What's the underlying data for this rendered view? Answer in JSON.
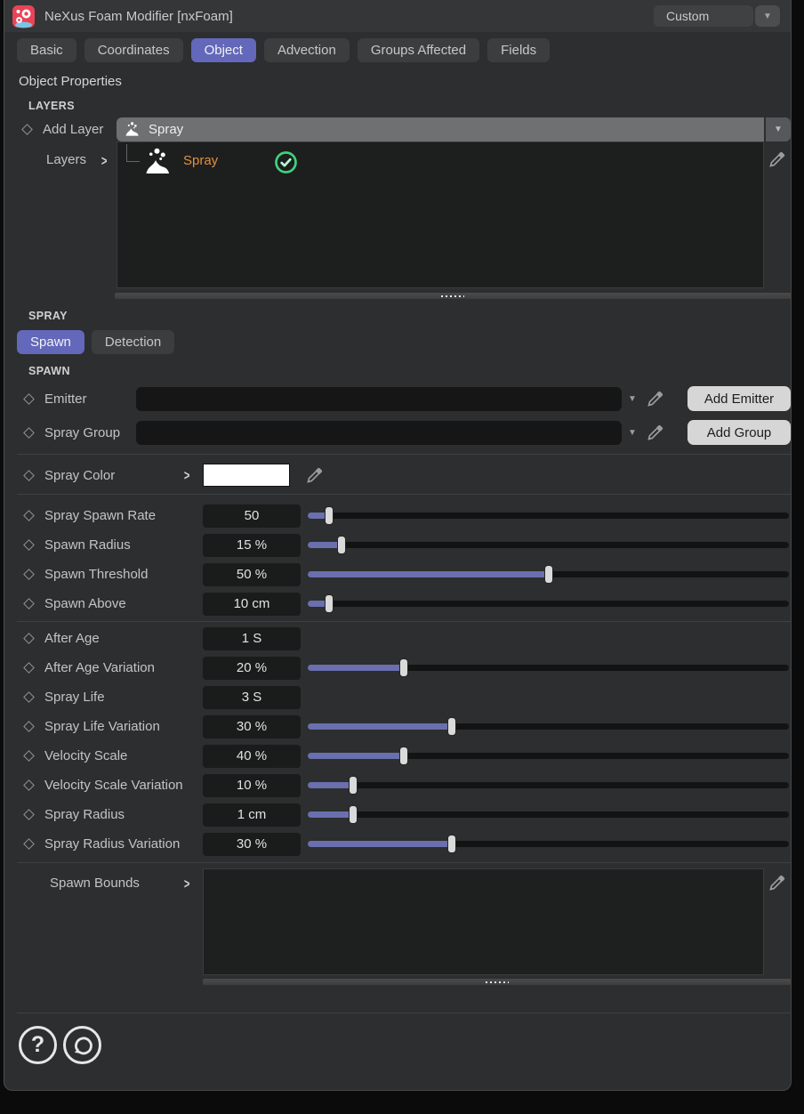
{
  "header": {
    "app_title": "NeXus Foam Modifier [nxFoam]",
    "preset_value": "Custom",
    "dropdown_glyph": "▼"
  },
  "tabs": {
    "basic": "Basic",
    "coordinates": "Coordinates",
    "object": "Object",
    "advection": "Advection",
    "groups_affected": "Groups Affected",
    "fields": "Fields"
  },
  "sections": {
    "object_properties_title": "Object Properties",
    "layers_heading": "LAYERS",
    "spray_heading": "SPRAY",
    "spawn_heading": "SPAWN"
  },
  "layers": {
    "add_layer_label": "Add Layer",
    "add_layer_value": "Spray",
    "layers_label": "Layers",
    "chevron_glyph": ">",
    "items": [
      {
        "name": "Spray",
        "enabled": true
      }
    ]
  },
  "spray_tabs": {
    "spawn": "Spawn",
    "detection": "Detection"
  },
  "spawn": {
    "emitter_label": "Emitter",
    "emitter_value": "",
    "add_emitter_button": "Add Emitter",
    "spray_group_label": "Spray Group",
    "spray_group_value": "",
    "add_group_button": "Add Group",
    "spray_color_label": "Spray Color",
    "spray_color_value": "#ffffff",
    "spawn_bounds_label": "Spawn Bounds",
    "params": [
      {
        "label": "Spray Spawn Rate",
        "value": "50",
        "fill": 4.5
      },
      {
        "label": "Spawn Radius",
        "value": "15 %",
        "fill": 7
      },
      {
        "label": "Spawn Threshold",
        "value": "50 %",
        "fill": 50
      },
      {
        "label": "Spawn Above",
        "value": "10 cm",
        "fill": 4.5
      },
      {
        "label": "After Age",
        "value": "1 S",
        "fill": null
      },
      {
        "label": "After Age Variation",
        "value": "20 %",
        "fill": 20
      },
      {
        "label": "Spray Life",
        "value": "3 S",
        "fill": null
      },
      {
        "label": "Spray Life Variation",
        "value": "30 %",
        "fill": 30
      },
      {
        "label": "Velocity Scale",
        "value": "40 %",
        "fill": 20
      },
      {
        "label": "Velocity Scale Variation",
        "value": "10 %",
        "fill": 9.5
      },
      {
        "label": "Spray Radius",
        "value": "1 cm",
        "fill": 9.5
      },
      {
        "label": "Spray Radius Variation",
        "value": "30 %",
        "fill": 30
      }
    ]
  },
  "footer": {
    "help_glyph": "?"
  },
  "colors": {
    "accent": "#6368ba",
    "slider_fill": "#6a6fae",
    "layer_name_orange": "#e2913e",
    "enabled_green": "#3ed27c",
    "swatch_white": "#ffffff"
  }
}
